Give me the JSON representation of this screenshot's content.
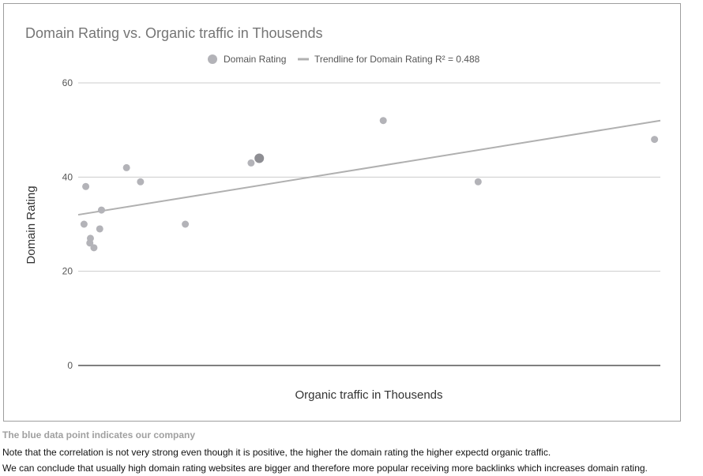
{
  "chart_data": {
    "type": "scatter",
    "title": "Domain Rating vs. Organic traffic in Thousends",
    "xlabel": "Organic traffic in Thousends",
    "ylabel": "Domain Rating",
    "ylim": [
      0,
      60
    ],
    "yticks": [
      "60",
      "40",
      "20",
      "0"
    ],
    "x_tick_labels_shown": false,
    "grid": "horizontal",
    "legend_position": "top",
    "legend": {
      "series_label": "Domain Rating",
      "trendline_label": "Trendline for Domain Rating R² = 0.488"
    },
    "xlim": [
      0,
      100
    ],
    "series": [
      {
        "name": "Domain Rating",
        "color": "#b3b3b8",
        "points": [
          {
            "x": 1,
            "y": 30
          },
          {
            "x": 1.3,
            "y": 38
          },
          {
            "x": 2,
            "y": 26
          },
          {
            "x": 2.1,
            "y": 27
          },
          {
            "x": 2.7,
            "y": 25
          },
          {
            "x": 3.7,
            "y": 29
          },
          {
            "x": 4,
            "y": 33
          },
          {
            "x": 8.3,
            "y": 42
          },
          {
            "x": 10.7,
            "y": 39
          },
          {
            "x": 18.4,
            "y": 30
          },
          {
            "x": 29.7,
            "y": 43
          },
          {
            "x": 31.1,
            "y": 44,
            "highlight": true
          },
          {
            "x": 52.4,
            "y": 52
          },
          {
            "x": 68.7,
            "y": 39
          },
          {
            "x": 99,
            "y": 48
          }
        ]
      }
    ],
    "trendline": {
      "x_start": 0,
      "y_start": 32,
      "x_end": 100,
      "y_end": 52,
      "r2": 0.488,
      "color": "#b0b0b0"
    },
    "colors": {
      "title": "#757575",
      "axis_text": "#555555",
      "gridline": "#cccccc",
      "baseline": "#333333",
      "highlight_point": "#8e8e93"
    }
  },
  "notes": [
    "The blue data point indicates our company",
    "Note that the correlation is not very strong even though it is positive, the higher the domain rating the higher expectd organic traffic.",
    "We can conclude that usually high domain rating websites are bigger and therefore more popular receiving more backlinks which increases domain rating."
  ]
}
